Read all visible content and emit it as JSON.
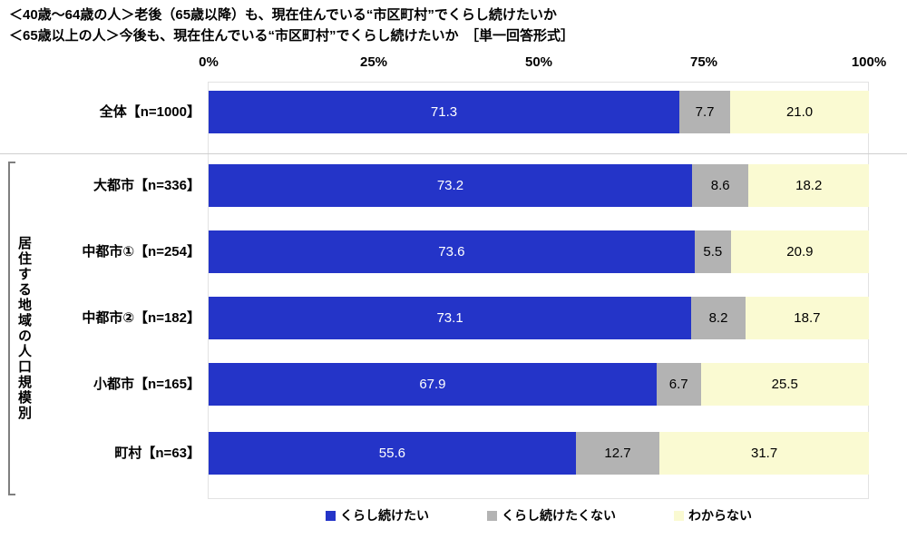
{
  "title": {
    "line1": "＜40歳～64歳の人＞老後（65歳以降）も、現在住んでいる“市区町村”でくらし続けたいか",
    "line2": "＜65歳以上の人＞今後も、現在住んでいる“市区町村”でくらし続けたいか　［単一回答形式］"
  },
  "group_label": "居住する地域の人口規模別",
  "legend": [
    {
      "label": "くらし続けたい",
      "color": "#2434c8"
    },
    {
      "label": "くらし続けたくない",
      "color": "#b3b3b3"
    },
    {
      "label": "わからない",
      "color": "#fafad2"
    }
  ],
  "chart_data": {
    "type": "bar",
    "subtype": "horizontal-stacked-100",
    "title": "＜40歳～64歳の人＞老後（65歳以降）も、現在住んでいる“市区町村”でくらし続けたいか／＜65歳以上の人＞今後も、現在住んでいる“市区町村”でくらし続けたいか［単一回答形式］",
    "categories": [
      "全体【n=1000】",
      "大都市【n=336】",
      "中都市①【n=254】",
      "中都市②【n=182】",
      "小都市【n=165】",
      "町村【n=63】"
    ],
    "series": [
      {
        "name": "くらし続けたい",
        "color": "#2434c8",
        "text_color": "#ffffff",
        "values": [
          71.3,
          73.2,
          73.6,
          73.1,
          67.9,
          55.6
        ]
      },
      {
        "name": "くらし続けたくない",
        "color": "#b3b3b3",
        "text_color": "#000000",
        "values": [
          7.7,
          8.6,
          5.5,
          8.2,
          6.7,
          12.7
        ]
      },
      {
        "name": "わからない",
        "color": "#fafad2",
        "text_color": "#000000",
        "values": [
          21.0,
          18.2,
          20.9,
          18.7,
          25.5,
          31.7
        ]
      }
    ],
    "xlim": [
      0,
      100
    ],
    "x_ticks": [
      "0%",
      "25%",
      "50%",
      "75%",
      "100%"
    ],
    "grid": false,
    "legend_position": "bottom",
    "group_axis_label": "居住する地域の人口規模別",
    "grouped_categories_range": [
      1,
      5
    ]
  }
}
